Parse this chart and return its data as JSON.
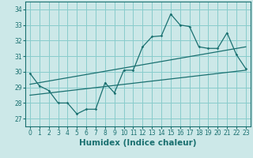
{
  "xlabel": "Humidex (Indice chaleur)",
  "bg_color": "#cce8e8",
  "line_color": "#1a7070",
  "grid_color": "#88cccc",
  "xlim": [
    -0.5,
    23.5
  ],
  "ylim": [
    26.5,
    34.5
  ],
  "yticks": [
    27,
    28,
    29,
    30,
    31,
    32,
    33,
    34
  ],
  "xticks": [
    0,
    1,
    2,
    3,
    4,
    5,
    6,
    7,
    8,
    9,
    10,
    11,
    12,
    13,
    14,
    15,
    16,
    17,
    18,
    19,
    20,
    21,
    22,
    23
  ],
  "main_x": [
    0,
    1,
    2,
    3,
    4,
    5,
    6,
    7,
    8,
    9,
    10,
    11,
    12,
    13,
    14,
    15,
    16,
    17,
    18,
    19,
    20,
    21,
    22,
    23
  ],
  "main_y": [
    29.9,
    29.1,
    28.8,
    28.0,
    28.0,
    27.3,
    27.6,
    27.6,
    29.3,
    28.65,
    30.1,
    30.1,
    31.6,
    32.25,
    32.3,
    33.7,
    33.0,
    32.9,
    31.6,
    31.5,
    31.5,
    32.5,
    31.1,
    30.2
  ],
  "trend1_x": [
    0,
    23
  ],
  "trend1_y": [
    29.2,
    31.6
  ],
  "trend2_x": [
    0,
    23
  ],
  "trend2_y": [
    28.5,
    30.1
  ],
  "tick_fontsize": 5.5,
  "label_fontsize": 7.5
}
